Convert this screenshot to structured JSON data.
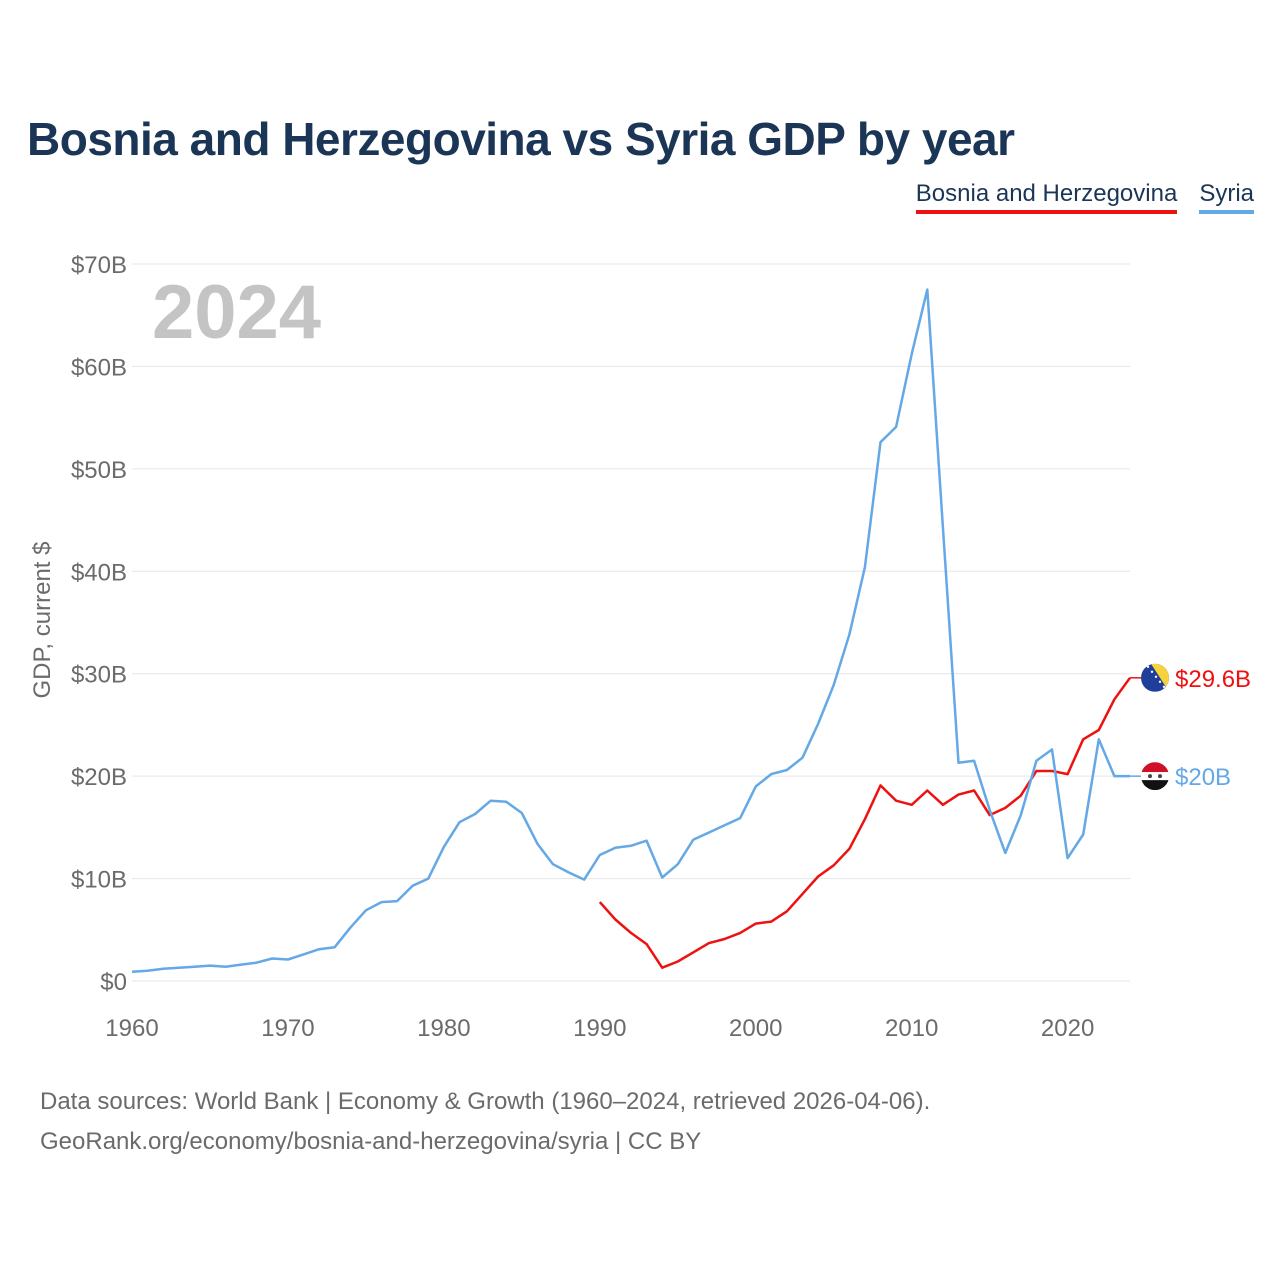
{
  "legend": {
    "items": [
      {
        "name": "Bosnia and Herzegovina",
        "color": "#ee1111"
      },
      {
        "name": "Syria",
        "color": "#64a8e6"
      }
    ]
  },
  "source": {
    "line1": "Data sources: World Bank | Economy & Growth (1960–2024, retrieved 2026-04-06).",
    "line2": "GeoRank.org/economy/bosnia-and-herzegovina/syria | CC BY"
  },
  "chart_data": {
    "type": "line",
    "title": "Bosnia and Herzegovina vs Syria GDP by year",
    "ylabel": "GDP, current $",
    "xlabel": "",
    "year_label": "2024",
    "xlim": [
      1960,
      2024
    ],
    "ylim": [
      0,
      70
    ],
    "x_ticks": [
      1960,
      1970,
      1980,
      1990,
      2000,
      2010,
      2020
    ],
    "y_ticks": [
      {
        "value": 0,
        "label": "$0"
      },
      {
        "value": 10,
        "label": "$10B"
      },
      {
        "value": 20,
        "label": "$20B"
      },
      {
        "value": 30,
        "label": "$30B"
      },
      {
        "value": 40,
        "label": "$40B"
      },
      {
        "value": 50,
        "label": "$50B"
      },
      {
        "value": 60,
        "label": "$60B"
      },
      {
        "value": 70,
        "label": "$70B"
      }
    ],
    "series": [
      {
        "name": "Bosnia and Herzegovina",
        "color": "#ee1111",
        "end_label": "$29.6B",
        "flag_icon": "bosnia-flag-icon",
        "x": [
          1990,
          1991,
          1992,
          1993,
          1994,
          1995,
          1996,
          1997,
          1998,
          1999,
          2000,
          2001,
          2002,
          2003,
          2004,
          2005,
          2006,
          2007,
          2008,
          2009,
          2010,
          2011,
          2012,
          2013,
          2014,
          2015,
          2016,
          2017,
          2018,
          2019,
          2020,
          2021,
          2022,
          2023,
          2024
        ],
        "values": [
          7.7,
          6.0,
          4.7,
          3.6,
          1.3,
          1.9,
          2.8,
          3.7,
          4.1,
          4.7,
          5.6,
          5.8,
          6.8,
          8.5,
          10.2,
          11.3,
          12.9,
          15.8,
          19.1,
          17.6,
          17.2,
          18.6,
          17.2,
          18.2,
          18.6,
          16.2,
          16.9,
          18.1,
          20.5,
          20.5,
          20.2,
          23.6,
          24.5,
          27.5,
          29.6
        ]
      },
      {
        "name": "Syria",
        "color": "#64a8e6",
        "end_label": "$20B",
        "flag_icon": "syria-flag-icon",
        "x": [
          1960,
          1961,
          1962,
          1963,
          1964,
          1965,
          1966,
          1967,
          1968,
          1969,
          1970,
          1971,
          1972,
          1973,
          1974,
          1975,
          1976,
          1977,
          1978,
          1979,
          1980,
          1981,
          1982,
          1983,
          1984,
          1985,
          1986,
          1987,
          1988,
          1989,
          1990,
          1991,
          1992,
          1993,
          1994,
          1995,
          1996,
          1997,
          1998,
          1999,
          2000,
          2001,
          2002,
          2003,
          2004,
          2005,
          2006,
          2007,
          2008,
          2009,
          2010,
          2011,
          2012,
          2013,
          2014,
          2015,
          2016,
          2017,
          2018,
          2019,
          2020,
          2021,
          2022,
          2023,
          2024
        ],
        "values": [
          0.9,
          1.0,
          1.2,
          1.3,
          1.4,
          1.5,
          1.4,
          1.6,
          1.8,
          2.2,
          2.1,
          2.6,
          3.1,
          3.3,
          5.2,
          6.9,
          7.7,
          7.8,
          9.3,
          10.0,
          13.1,
          15.5,
          16.3,
          17.6,
          17.5,
          16.4,
          13.4,
          11.4,
          10.6,
          9.9,
          12.3,
          13.0,
          13.2,
          13.7,
          10.1,
          11.4,
          13.8,
          14.5,
          15.2,
          15.9,
          19.0,
          20.2,
          20.6,
          21.8,
          25.1,
          28.9,
          33.8,
          40.4,
          52.6,
          54.1,
          61.2,
          67.5,
          44.3,
          21.3,
          21.5,
          16.7,
          12.5,
          16.2,
          21.5,
          22.6,
          12.0,
          14.3,
          23.6,
          20.0,
          20.0
        ]
      }
    ]
  }
}
